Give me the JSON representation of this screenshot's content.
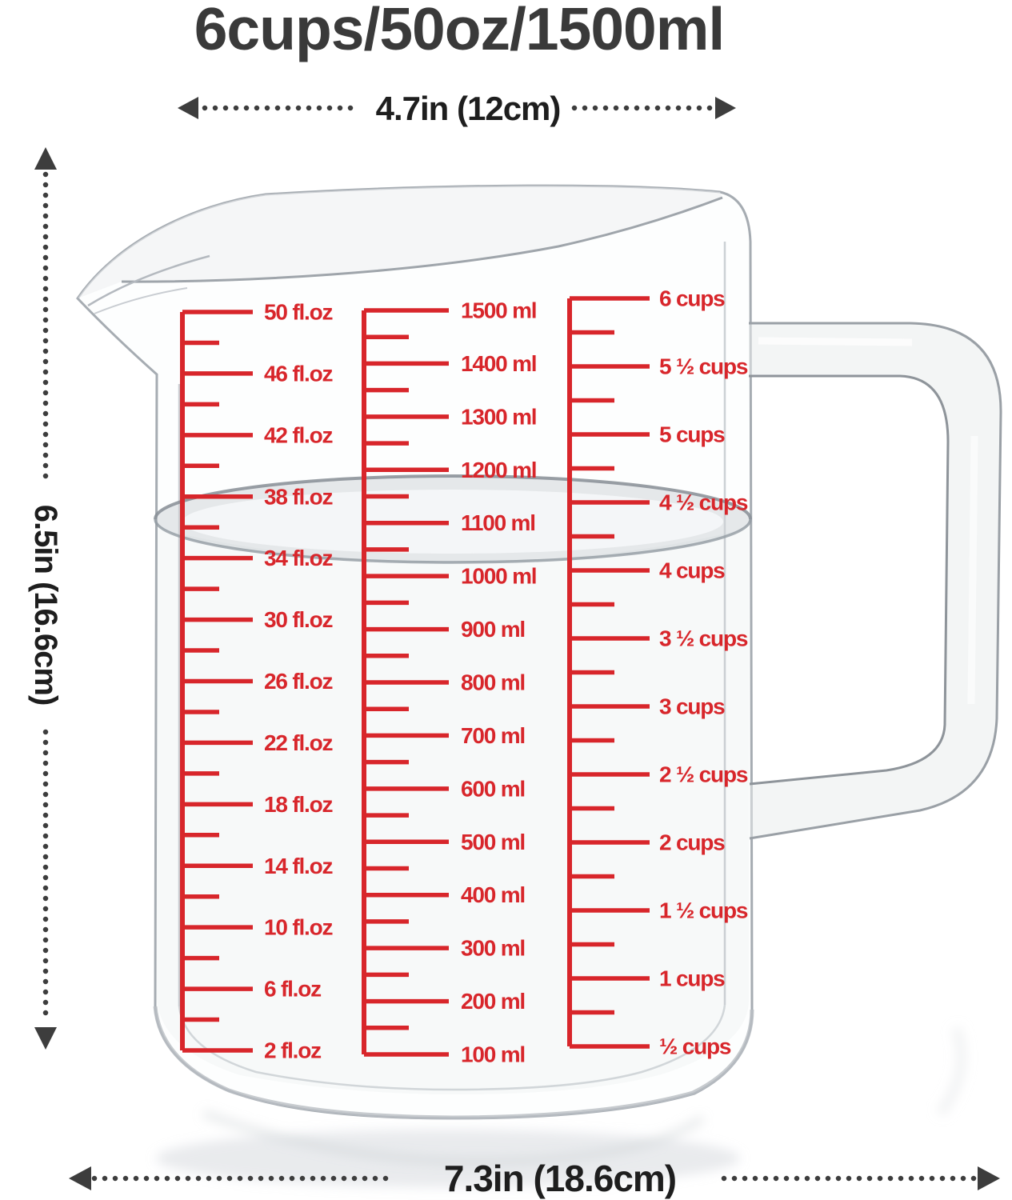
{
  "title": "6cups/50oz/1500ml",
  "annotations": {
    "top_width": "4.7in (12cm)",
    "side_height": "6.5in (16.6cm)",
    "bottom_width": "7.3in (18.6cm)"
  },
  "scales": {
    "fluid_ounces": {
      "unit": "fl.oz",
      "labels": [
        "50 fl.oz",
        "46 fl.oz",
        "42 fl.oz",
        "38 fl.oz",
        "34 fl.oz",
        "30 fl.oz",
        "26 fl.oz",
        "22 fl.oz",
        "18 fl.oz",
        "14 fl.oz",
        "10 fl.oz",
        "6 fl.oz",
        "2 fl.oz"
      ]
    },
    "milliliters": {
      "unit": "ml",
      "labels": [
        "1500 ml",
        "1400 ml",
        "1300 ml",
        "1200 ml",
        "1100 ml",
        "1000 ml",
        "900 ml",
        "800 ml",
        "700 ml",
        "600 ml",
        "500 ml",
        "400 ml",
        "300 ml",
        "200 ml",
        "100 ml"
      ]
    },
    "cups": {
      "unit": "cups",
      "labels": [
        "6 cups",
        "5 ½ cups",
        "5 cups",
        "4 ½ cups",
        "4 cups",
        "3 ½ cups",
        "3 cups",
        "2 ½ cups",
        "2 cups",
        "1 ½ cups",
        "1 cups",
        "½ cups"
      ]
    }
  },
  "colors": {
    "scale_red": "#d8262b",
    "title_text": "#3a3a3a",
    "dimension_text": "#1e1e1e",
    "arrow": "#3d3d3d",
    "glass_edge": "#a6acb2",
    "water_gray": "#cdd2d6"
  }
}
